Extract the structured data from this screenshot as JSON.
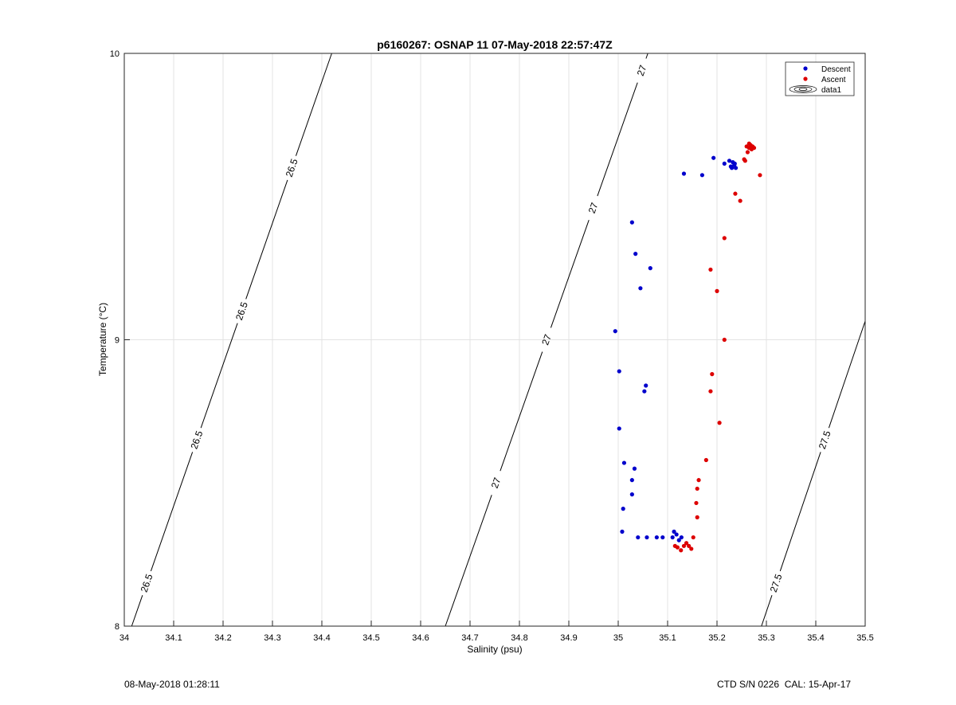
{
  "chart_data": {
    "type": "scatter",
    "title": "p6160267: OSNAP 11 07-May-2018 22:57:47Z",
    "xlabel": "Salinity (psu)",
    "ylabel": "Temperature (°C)",
    "xlim": [
      34,
      35.5
    ],
    "ylim": [
      8,
      10
    ],
    "xticks": [
      "34",
      "34.1",
      "34.2",
      "34.3",
      "34.4",
      "34.5",
      "34.6",
      "34.7",
      "34.8",
      "34.9",
      "35",
      "35.1",
      "35.2",
      "35.3",
      "35.4",
      "35.5"
    ],
    "yticks": [
      "8",
      "9",
      "10"
    ],
    "grid": true,
    "legend_position": "top-right",
    "legend": [
      "Descent",
      "Ascent",
      "data1"
    ],
    "colors": {
      "descent": "#0000cc",
      "ascent": "#dd0000",
      "contour": "#000000",
      "grid": "#e3e3e3"
    },
    "series": [
      {
        "name": "Descent",
        "marker": "dot",
        "points": [
          [
            35.123,
            8.3
          ],
          [
            35.128,
            8.31
          ],
          [
            35.118,
            8.32
          ],
          [
            35.113,
            8.33
          ],
          [
            35.11,
            8.31
          ],
          [
            35.09,
            8.31
          ],
          [
            35.078,
            8.31
          ],
          [
            35.058,
            8.31
          ],
          [
            35.04,
            8.31
          ],
          [
            35.008,
            8.33
          ],
          [
            35.01,
            8.41
          ],
          [
            35.028,
            8.46
          ],
          [
            35.028,
            8.51
          ],
          [
            35.033,
            8.55
          ],
          [
            35.012,
            8.57
          ],
          [
            35.002,
            8.69
          ],
          [
            35.053,
            8.82
          ],
          [
            35.056,
            8.84
          ],
          [
            35.002,
            8.89
          ],
          [
            34.994,
            9.03
          ],
          [
            35.045,
            9.18
          ],
          [
            35.065,
            9.25
          ],
          [
            35.035,
            9.3
          ],
          [
            35.028,
            9.41
          ],
          [
            35.133,
            9.58
          ],
          [
            35.17,
            9.575
          ],
          [
            35.193,
            9.635
          ],
          [
            35.215,
            9.615
          ],
          [
            35.225,
            9.625
          ],
          [
            35.232,
            9.62
          ],
          [
            35.228,
            9.605
          ],
          [
            35.235,
            9.61
          ],
          [
            35.23,
            9.6
          ],
          [
            35.238,
            9.6
          ],
          [
            35.236,
            9.615
          ]
        ]
      },
      {
        "name": "Ascent",
        "marker": "dot",
        "points": [
          [
            35.115,
            8.28
          ],
          [
            35.12,
            8.275
          ],
          [
            35.127,
            8.265
          ],
          [
            35.133,
            8.28
          ],
          [
            35.138,
            8.29
          ],
          [
            35.143,
            8.28
          ],
          [
            35.148,
            8.27
          ],
          [
            35.152,
            8.31
          ],
          [
            35.16,
            8.38
          ],
          [
            35.158,
            8.43
          ],
          [
            35.16,
            8.48
          ],
          [
            35.163,
            8.51
          ],
          [
            35.178,
            8.58
          ],
          [
            35.205,
            8.71
          ],
          [
            35.187,
            8.82
          ],
          [
            35.19,
            8.88
          ],
          [
            35.215,
            9.0
          ],
          [
            35.2,
            9.17
          ],
          [
            35.187,
            9.245
          ],
          [
            35.215,
            9.355
          ],
          [
            35.247,
            9.485
          ],
          [
            35.237,
            9.51
          ],
          [
            35.287,
            9.575
          ],
          [
            35.257,
            9.625
          ],
          [
            35.255,
            9.63
          ],
          [
            35.262,
            9.655
          ],
          [
            35.27,
            9.665
          ],
          [
            35.265,
            9.67
          ],
          [
            35.26,
            9.675
          ],
          [
            35.272,
            9.675
          ],
          [
            35.275,
            9.67
          ],
          [
            35.265,
            9.685
          ],
          [
            35.268,
            9.68
          ]
        ]
      },
      {
        "name": "data1",
        "type": "contour",
        "levels": [
          {
            "label": "26.5",
            "points": [
              [
                34.015,
                8.0
              ],
              [
                34.42,
                10.0
              ]
            ],
            "label_y": [
              8.15,
              8.65,
              9.1,
              9.6
            ]
          },
          {
            "label": "27",
            "points": [
              [
                34.65,
                8.0
              ],
              [
                35.06,
                10.0
              ]
            ],
            "label_y": [
              8.5,
              9.0,
              9.46,
              9.94
            ]
          },
          {
            "label": "27.5",
            "points": [
              [
                35.29,
                8.0
              ],
              [
                35.5,
                9.065
              ]
            ],
            "label_y": [
              8.15,
              8.65
            ]
          }
        ]
      }
    ]
  },
  "footer": {
    "timestamp": "08-May-2018 01:28:11",
    "instrument": "CTD S/N 0226  CAL: 15-Apr-17"
  }
}
